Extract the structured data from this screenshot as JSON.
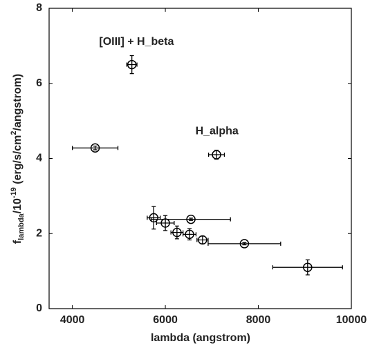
{
  "chart_data": {
    "type": "scatter",
    "xlabel": "lambda (angstrom)",
    "ylabel": [
      "f",
      "lambda",
      "/10",
      "-19",
      " (erg/s/cm",
      "2",
      "/angstrom)"
    ],
    "x": [
      5280,
      4490,
      7100,
      5750,
      6000,
      6550,
      6250,
      6520,
      6800,
      7700,
      9060
    ],
    "y": [
      6.5,
      4.28,
      4.1,
      2.42,
      2.28,
      2.38,
      2.03,
      1.98,
      1.83,
      1.73,
      1.1
    ],
    "xerr": [
      110,
      490,
      170,
      140,
      190,
      850,
      130,
      140,
      120,
      780,
      750
    ],
    "yerr": [
      0.24,
      0.05,
      0.12,
      0.3,
      0.2,
      0.03,
      0.17,
      0.15,
      0.1,
      0.03,
      0.2
    ],
    "color": "#000000",
    "xlim": [
      3500,
      10000
    ],
    "ylim": [
      0,
      8
    ],
    "xticks": [
      4000,
      6000,
      8000,
      10000
    ],
    "yticks": [
      0,
      2,
      4,
      6,
      8
    ],
    "annotations": [
      {
        "text": "[OIII] + H_beta",
        "x": 5380,
        "y": 7.1
      },
      {
        "text": "H_alpha",
        "x": 7110,
        "y": 4.72
      }
    ]
  }
}
